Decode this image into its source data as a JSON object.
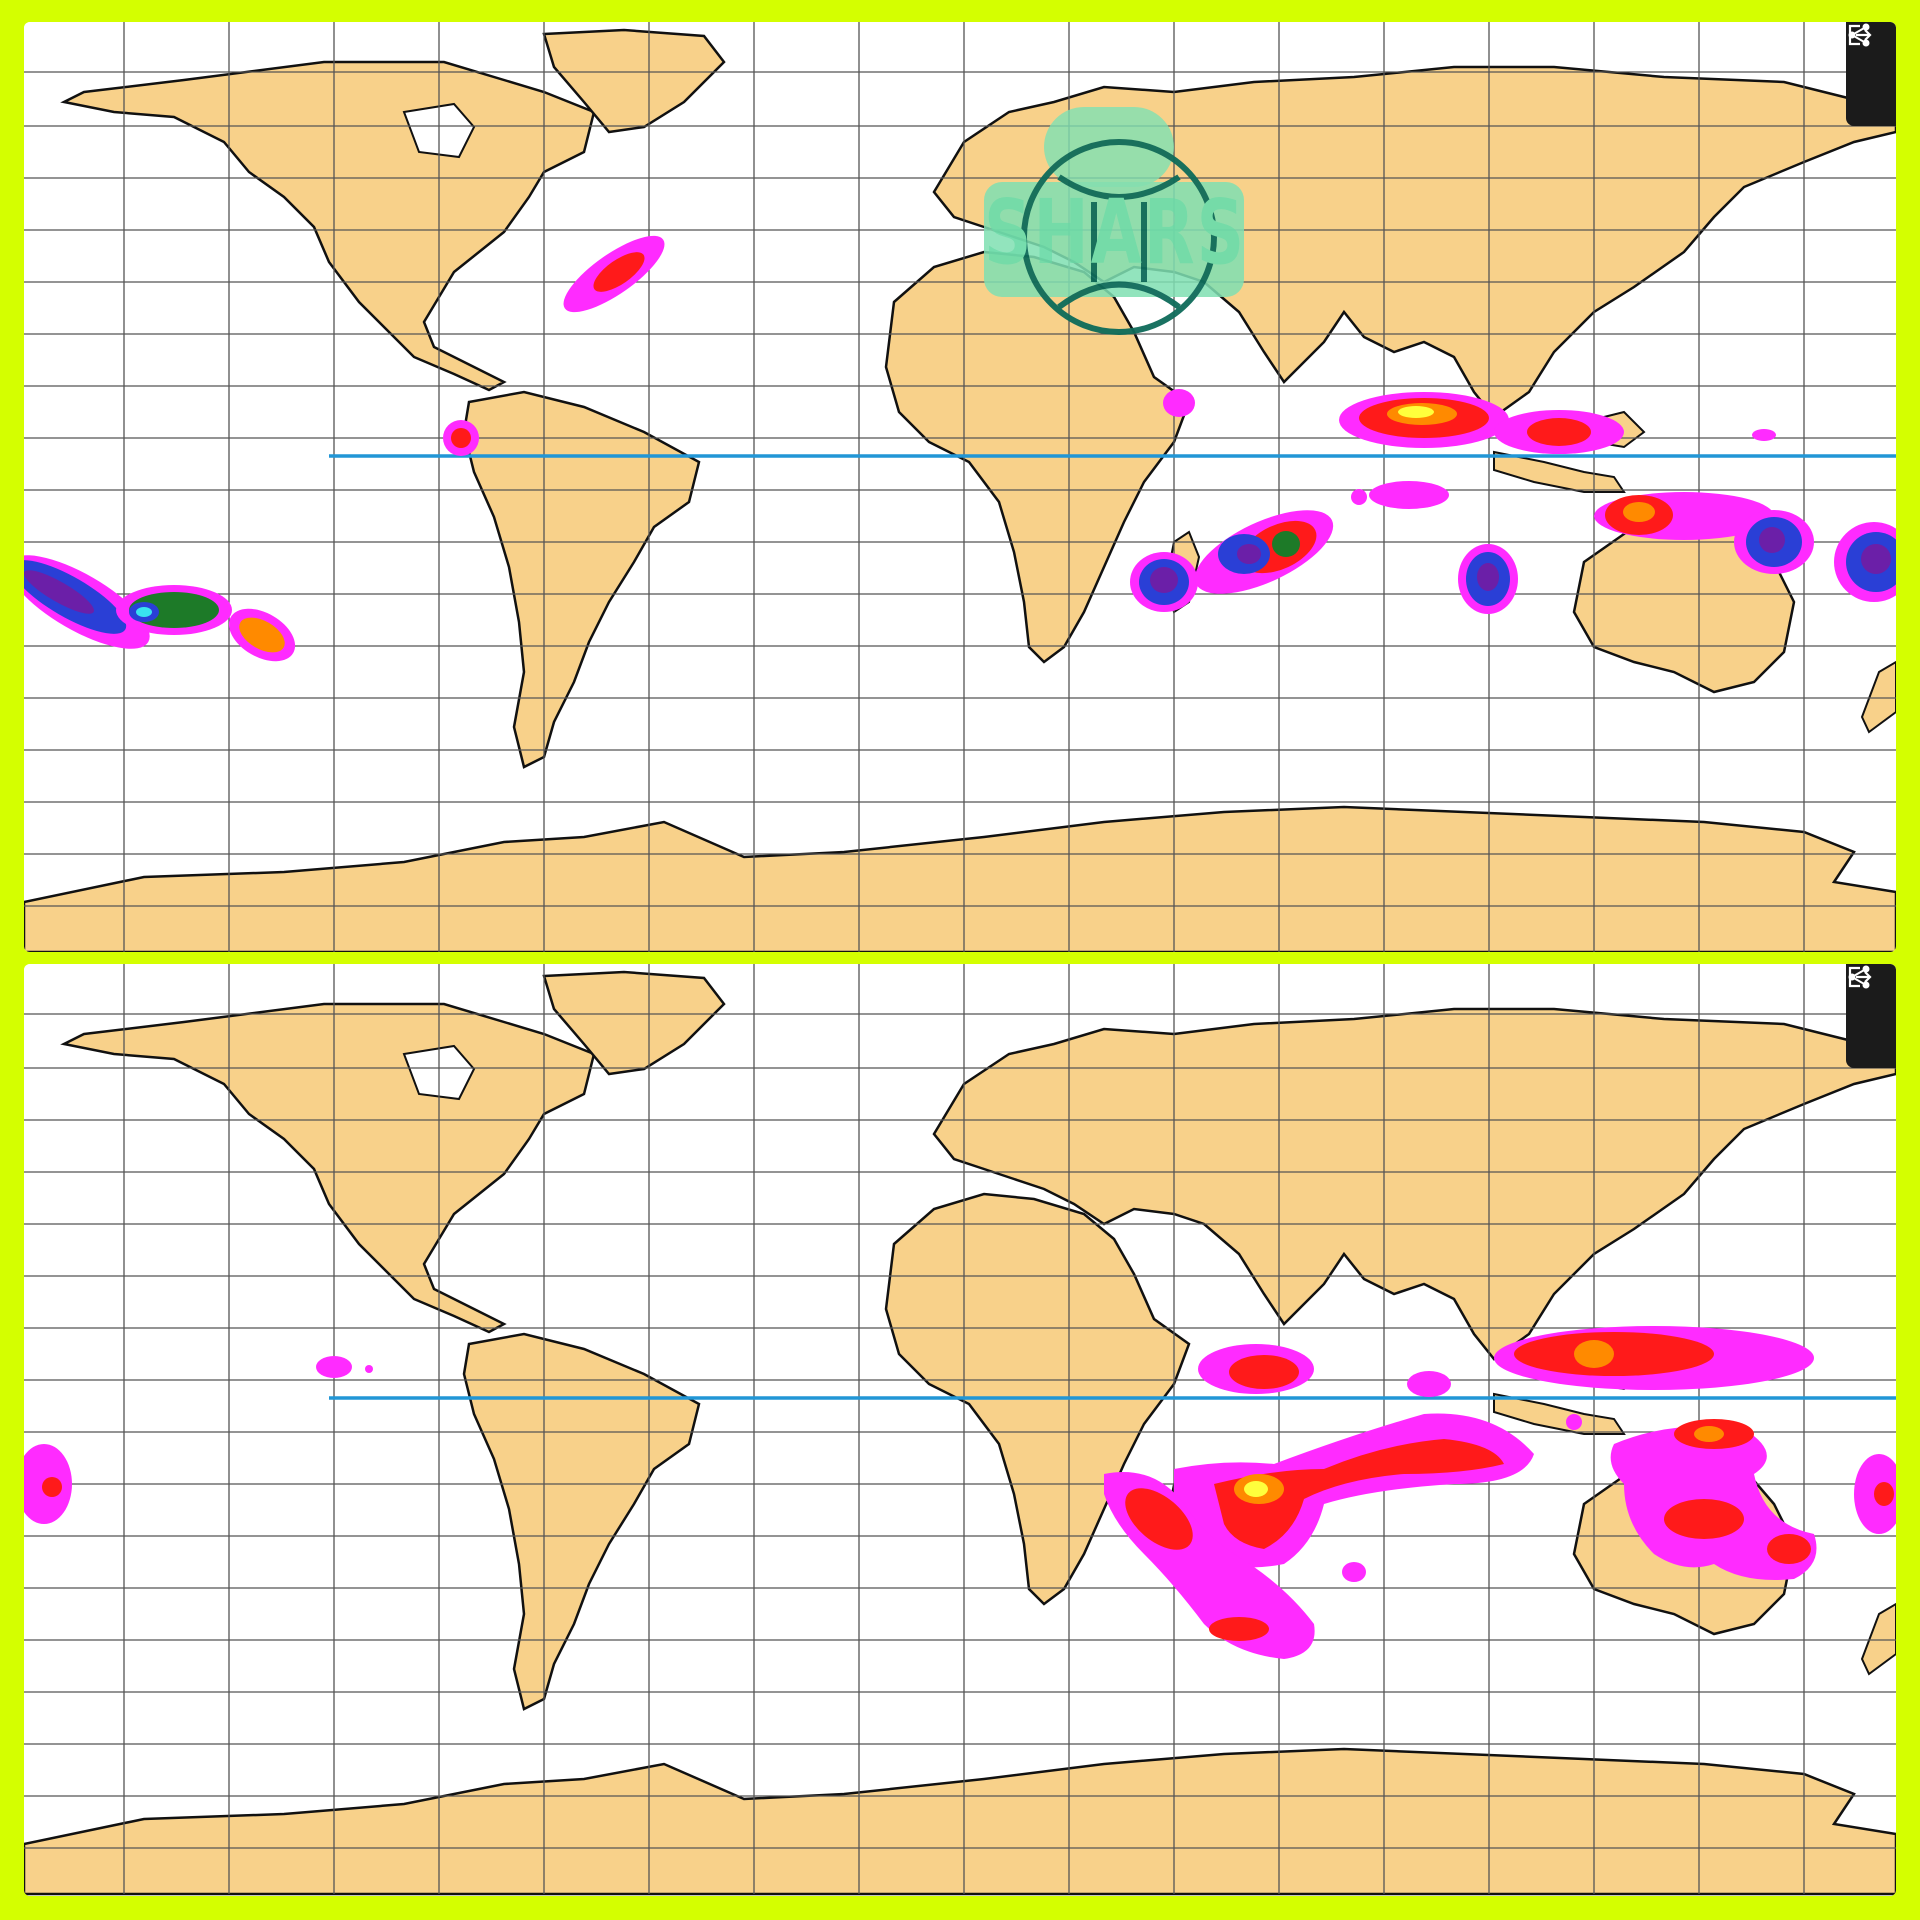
{
  "toolbar": {
    "share_icon": "share-icon",
    "export_icon": "export-icon"
  },
  "watermark": {
    "text": "SHARS",
    "icon": "gemini-glyph-icon"
  },
  "colors": {
    "frame": "#d4ff00",
    "ocean": "#ffffff",
    "land": "#f8d18a",
    "grid": "#555555",
    "equator": "#2196d6",
    "precip_scale": [
      "#ff2bff",
      "#ff1a1a",
      "#ff8a00",
      "#ffff3c",
      "#1d7a28",
      "#2a3fd6",
      "#6b1fa8",
      "#39e3f0"
    ]
  },
  "panels": [
    {
      "id": "top",
      "label": ""
    },
    {
      "id": "bottom",
      "label": ""
    }
  ]
}
